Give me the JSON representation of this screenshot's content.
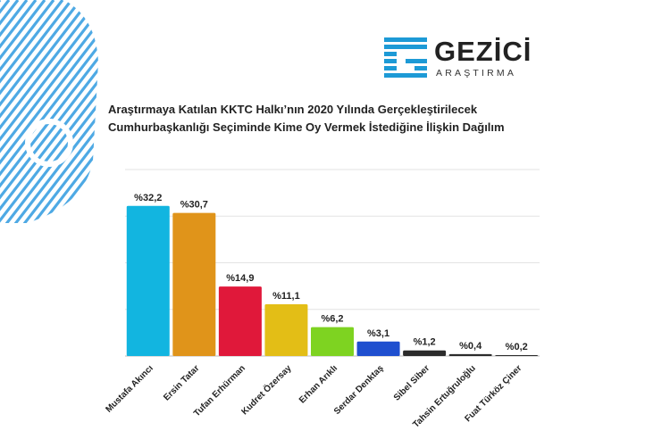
{
  "logo": {
    "text": "GEZİCİ",
    "subtext": "ARAŞTIRMA",
    "accent": "#1d9ad6"
  },
  "title_line1": "Araştırmaya Katılan KKTC Halkı’nın 2020 Yılında Gerçekleştirilecek",
  "title_line2": "Cumhurbaşkanlığı Seçiminde Kime Oy Vermek İstediğine İlişkin Dağılım",
  "chart_data": {
    "type": "bar",
    "categories": [
      "Mustafa Akıncı",
      "Ersin Tatar",
      "Tufan Erhürman",
      "Kudret Özersay",
      "Erhan Arıklı",
      "Serdar Denktaş",
      "Sibel Siber",
      "Tahsin Ertuğruloğlu",
      "Fuat Türköz Çiner"
    ],
    "values": [
      32.2,
      30.7,
      14.9,
      11.1,
      6.2,
      3.1,
      1.2,
      0.4,
      0.2
    ],
    "value_labels": [
      "%32,2",
      "%30,7",
      "%14,9",
      "%11,1",
      "%6,2",
      "%3,1",
      "%1,2",
      "%0,4",
      "%0,2"
    ],
    "colors": [
      "#12b5e0",
      "#e0941a",
      "#e0183a",
      "#e3be16",
      "#7ed321",
      "#1f4fcf",
      "#2b2b2b",
      "#2b2b2b",
      "#2b2b2b"
    ],
    "ylim": [
      0,
      40
    ],
    "grid": true,
    "title": "Araştırmaya Katılan KKTC Halkı’nın 2020 Yılında Gerçekleştirilecek Cumhurbaşkanlığı Seçiminde Kime Oy Vermek İstediğine İlişkin Dağılım",
    "xlabel": "",
    "ylabel": ""
  }
}
